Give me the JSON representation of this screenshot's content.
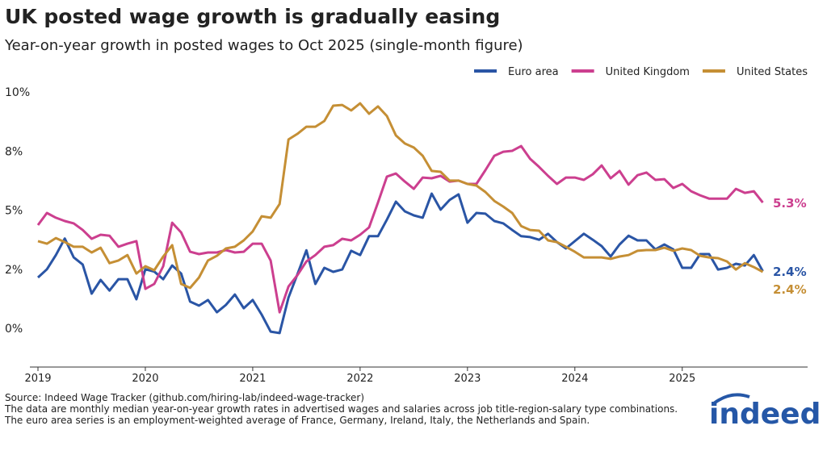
{
  "chart_data": {
    "type": "line",
    "title": "UK posted wage growth is gradually easing",
    "subtitle": "Year-on-year growth in posted wages to Oct 2025 (single-month figure)",
    "categories": [
      "2019",
      null,
      null,
      null,
      null,
      null,
      null,
      null,
      null,
      null,
      null,
      null,
      "2020",
      null,
      null,
      null,
      null,
      null,
      null,
      null,
      null,
      null,
      null,
      null,
      "2021",
      null,
      null,
      null,
      null,
      null,
      null,
      null,
      null,
      null,
      null,
      null,
      "2022",
      null,
      null,
      null,
      null,
      null,
      null,
      null,
      null,
      null,
      null,
      null,
      "2023",
      null,
      null,
      null,
      null,
      null,
      null,
      null,
      null,
      null,
      null,
      null,
      "2024",
      null,
      null,
      null,
      null,
      null,
      null,
      null,
      null,
      null,
      null,
      null,
      "2025",
      null,
      null,
      null,
      null,
      null,
      null,
      null,
      null,
      null
    ],
    "series": [
      {
        "name": "Euro area",
        "color": "#2a55a5",
        "end_label": "2.4%",
        "values": [
          2.15,
          2.5,
          3.1,
          3.8,
          3.0,
          2.7,
          1.47,
          2.05,
          1.6,
          2.08,
          2.08,
          1.23,
          2.5,
          2.4,
          2.08,
          2.66,
          2.32,
          1.13,
          0.96,
          1.2,
          0.68,
          0.99,
          1.43,
          0.85,
          1.2,
          0.58,
          -0.14,
          -0.2,
          1.3,
          2.29,
          3.3,
          1.88,
          2.56,
          2.39,
          2.49,
          3.28,
          3.1,
          3.9,
          3.9,
          4.6,
          5.36,
          4.95,
          4.78,
          4.68,
          5.7,
          5.02,
          5.43,
          5.67,
          4.47,
          4.88,
          4.85,
          4.54,
          4.44,
          4.16,
          3.9,
          3.86,
          3.75,
          4.0,
          3.65,
          3.38,
          3.69,
          4.0,
          3.75,
          3.48,
          3.04,
          3.55,
          3.92,
          3.72,
          3.72,
          3.34,
          3.55,
          3.34,
          2.56,
          2.56,
          3.14,
          3.14,
          2.49,
          2.56,
          2.73,
          2.66,
          3.1,
          2.42
        ]
      },
      {
        "name": "United Kingdom",
        "color": "#cc3f8f",
        "end_label": "5.3%",
        "values": [
          4.37,
          4.88,
          4.68,
          4.54,
          4.44,
          4.16,
          3.79,
          3.96,
          3.92,
          3.45,
          3.58,
          3.69,
          1.67,
          1.88,
          2.63,
          4.47,
          4.06,
          3.24,
          3.14,
          3.21,
          3.21,
          3.31,
          3.21,
          3.24,
          3.58,
          3.58,
          2.87,
          0.68,
          1.77,
          2.25,
          2.83,
          3.1,
          3.45,
          3.52,
          3.79,
          3.72,
          3.96,
          4.27,
          5.32,
          6.42,
          6.55,
          6.21,
          5.9,
          6.38,
          6.35,
          6.45,
          6.21,
          6.25,
          6.11,
          6.11,
          6.69,
          7.3,
          7.47,
          7.51,
          7.71,
          7.17,
          6.83,
          6.45,
          6.11,
          6.38,
          6.38,
          6.28,
          6.52,
          6.89,
          6.35,
          6.66,
          6.08,
          6.48,
          6.59,
          6.28,
          6.31,
          5.94,
          6.11,
          5.8,
          5.63,
          5.49,
          5.49,
          5.49,
          5.9,
          5.73,
          5.8,
          5.32
        ]
      },
      {
        "name": "United States",
        "color": "#c58f35",
        "end_label": "2.4%",
        "values": [
          3.69,
          3.58,
          3.82,
          3.65,
          3.45,
          3.45,
          3.21,
          3.41,
          2.76,
          2.87,
          3.1,
          2.32,
          2.63,
          2.46,
          3.04,
          3.52,
          1.88,
          1.71,
          2.15,
          2.87,
          3.07,
          3.38,
          3.45,
          3.72,
          4.1,
          4.74,
          4.68,
          5.26,
          7.99,
          8.23,
          8.53,
          8.53,
          8.77,
          9.42,
          9.45,
          9.22,
          9.52,
          9.08,
          9.39,
          8.98,
          8.16,
          7.82,
          7.65,
          7.3,
          6.66,
          6.62,
          6.25,
          6.25,
          6.11,
          6.04,
          5.77,
          5.39,
          5.15,
          4.88,
          4.33,
          4.16,
          4.13,
          3.72,
          3.65,
          3.45,
          3.24,
          3.0,
          3.0,
          3.0,
          2.94,
          3.04,
          3.1,
          3.28,
          3.31,
          3.31,
          3.41,
          3.28,
          3.38,
          3.31,
          3.07,
          3.0,
          2.97,
          2.83,
          2.49,
          2.76,
          2.59,
          2.39
        ]
      }
    ],
    "ylim": [
      -1.5,
      10
    ],
    "yticks": [
      {
        "value": 0,
        "label": "0%"
      },
      {
        "value": 2.5,
        "label": "2%"
      },
      {
        "value": 5,
        "label": "5%"
      },
      {
        "value": 7.5,
        "label": "8%"
      },
      {
        "value": 10,
        "label": "10%"
      }
    ],
    "grid": false,
    "legend": "top-right",
    "source": "Source: Indeed Wage Tracker (github.com/hiring-lab/indeed-wage-tracker)",
    "notes": [
      "The data are monthly median year-on-year growth rates in advertised wages and salaries across job title-region-salary type combinations.",
      "The euro area series is an employment-weighted average of France, Germany, Ireland, Italy, the Netherlands and Spain."
    ],
    "logo": "indeed"
  }
}
